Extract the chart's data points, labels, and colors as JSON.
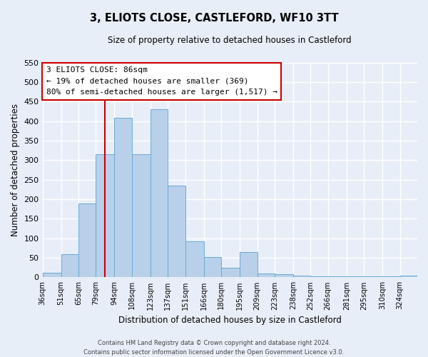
{
  "title": "3, ELIOTS CLOSE, CASTLEFORD, WF10 3TT",
  "subtitle": "Size of property relative to detached houses in Castleford",
  "xlabel": "Distribution of detached houses by size in Castleford",
  "ylabel": "Number of detached properties",
  "bar_color": "#b8d0ea",
  "bar_edge_color": "#6aaad4",
  "background_color": "#e8eef8",
  "grid_color": "#ffffff",
  "property_line_x": 86,
  "annotation_line1": "3 ELIOTS CLOSE: 86sqm",
  "annotation_line2": "← 19% of detached houses are smaller (369)",
  "annotation_line3": "80% of semi-detached houses are larger (1,517) →",
  "annotation_box_color": "#ffffff",
  "annotation_box_edge": "#cc0000",
  "property_line_color": "#cc0000",
  "left_edges": [
    36,
    51,
    65,
    79,
    94,
    108,
    123,
    137,
    151,
    166,
    180,
    195,
    209,
    223,
    238,
    252,
    266,
    281,
    295,
    310,
    324
  ],
  "right_edges": [
    51,
    65,
    79,
    94,
    108,
    123,
    137,
    151,
    166,
    180,
    195,
    209,
    223,
    238,
    252,
    266,
    281,
    295,
    310,
    324,
    338
  ],
  "values": [
    12,
    60,
    190,
    315,
    408,
    315,
    430,
    235,
    93,
    52,
    25,
    65,
    10,
    8,
    5,
    3,
    3,
    2,
    2,
    3,
    5
  ],
  "tick_labels": [
    "36sqm",
    "51sqm",
    "65sqm",
    "79sqm",
    "94sqm",
    "108sqm",
    "123sqm",
    "137sqm",
    "151sqm",
    "166sqm",
    "180sqm",
    "195sqm",
    "209sqm",
    "223sqm",
    "238sqm",
    "252sqm",
    "266sqm",
    "281sqm",
    "295sqm",
    "310sqm",
    "324sqm"
  ],
  "ylim": [
    0,
    550
  ],
  "yticks": [
    0,
    50,
    100,
    150,
    200,
    250,
    300,
    350,
    400,
    450,
    500,
    550
  ],
  "footer_line1": "Contains HM Land Registry data © Crown copyright and database right 2024.",
  "footer_line2": "Contains public sector information licensed under the Open Government Licence v3.0."
}
